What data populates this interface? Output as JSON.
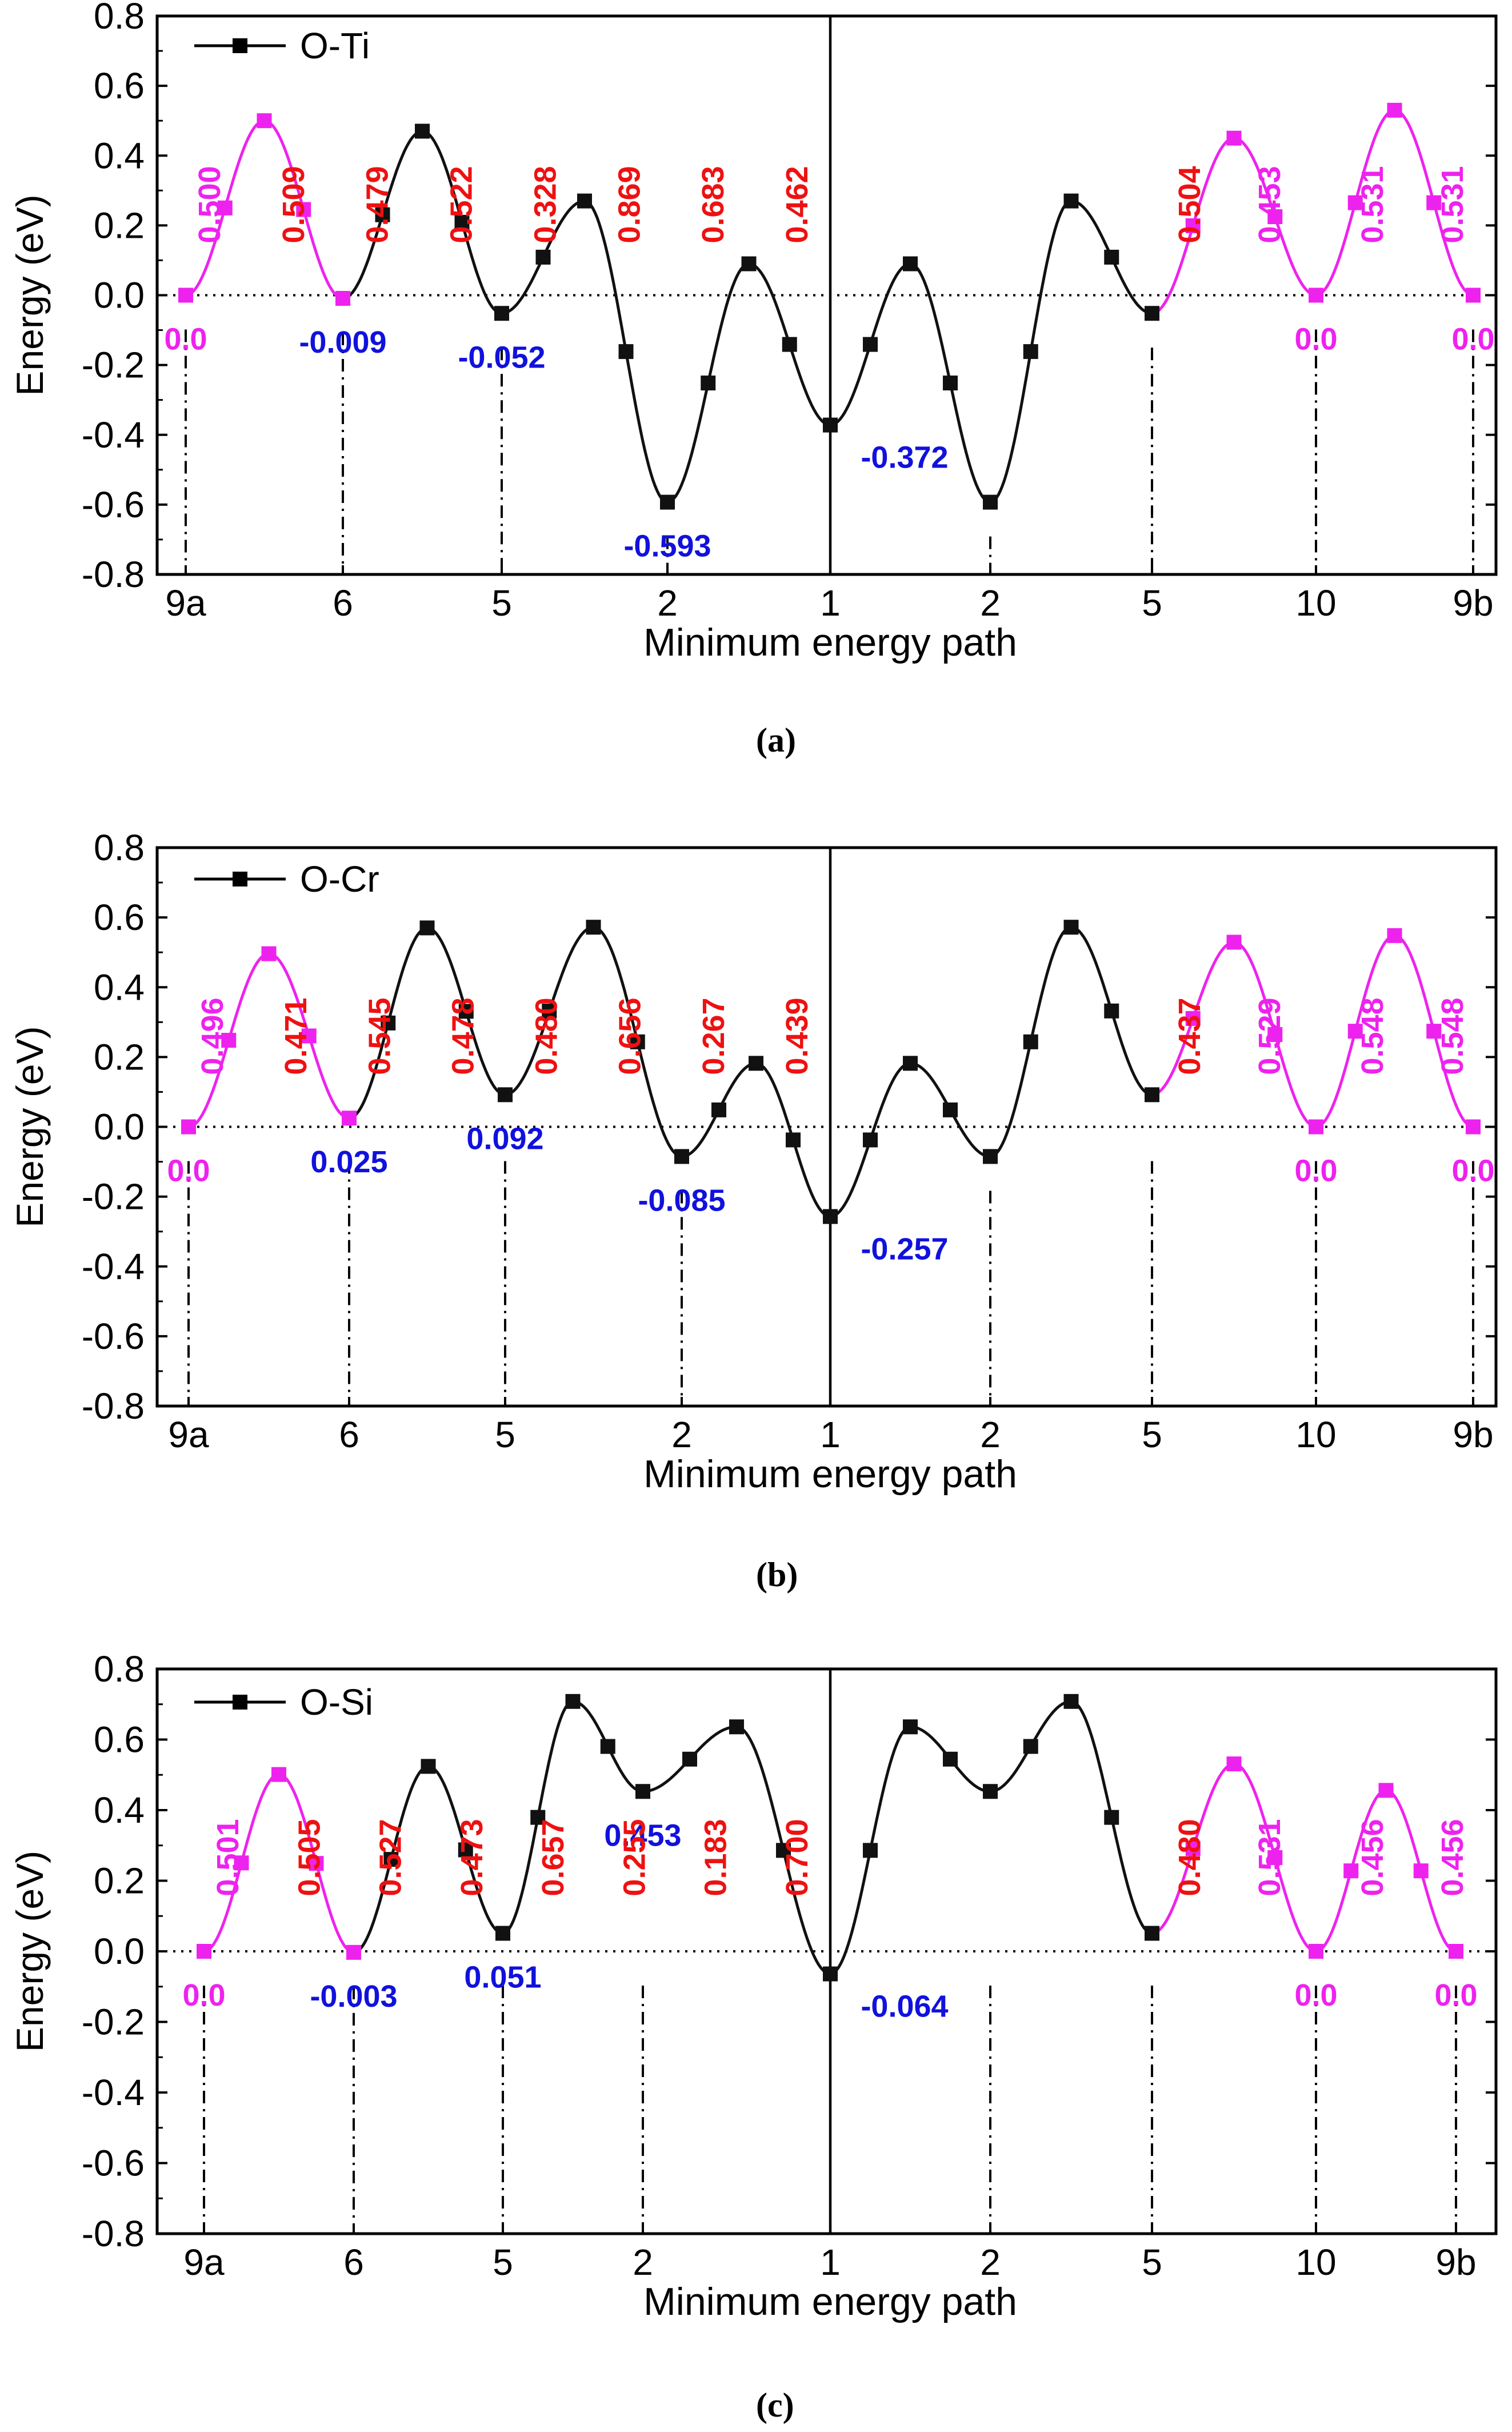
{
  "colors": {
    "black": "#111111",
    "magenta": "#ee22ee",
    "red": "#ee1111",
    "blue": "#1111dd"
  },
  "chart_data": [
    {
      "type": "line",
      "panel": "a",
      "legend": "O-Ti",
      "xlabel": "Minimum energy path",
      "ylabel": "Energy (eV)",
      "ylim": [
        -0.8,
        0.8
      ],
      "yticks": [
        "0.8",
        "0.6",
        "0.4",
        "0.2",
        "0.0",
        "-0.2",
        "-0.4",
        "-0.6",
        "-0.8"
      ],
      "xtick_labels": [
        "9a",
        "6",
        "5",
        "2",
        "1",
        "2",
        "5",
        "10",
        "9b"
      ],
      "minima": [
        0.0,
        -0.009,
        -0.052,
        -0.593,
        -0.372,
        -0.593,
        -0.052,
        0.0,
        0.0
      ],
      "saddles": [
        0.5,
        0.47,
        0.27,
        0.09,
        0.09,
        0.27,
        0.45,
        0.53
      ],
      "barrier_labels": [
        "0.500",
        "0.509",
        "0.479",
        "0.522",
        "0.328",
        "0.869",
        "0.683",
        "0.462",
        "0.504",
        "0.453",
        "0.531",
        "0.531"
      ],
      "barrier_colors": [
        "magenta",
        "red",
        "red",
        "red",
        "red",
        "red",
        "red",
        "red",
        "red",
        "magenta",
        "magenta",
        "magenta"
      ],
      "min_labels": [
        "0.0",
        "-0.009",
        "-0.052",
        "-0.593",
        "-0.372",
        "0.0",
        "0.0"
      ],
      "min_label_colors": [
        "magenta",
        "blue",
        "blue",
        "blue",
        "blue",
        "magenta",
        "magenta"
      ],
      "caption": "(a)"
    },
    {
      "type": "line",
      "panel": "b",
      "legend": "O-Cr",
      "xlabel": "Minimum energy path",
      "ylabel": "Energy (eV)",
      "ylim": [
        -0.8,
        0.8
      ],
      "yticks": [
        "0.8",
        "0.6",
        "0.4",
        "0.2",
        "0.0",
        "-0.2",
        "-0.4",
        "-0.6",
        "-0.8"
      ],
      "xtick_labels": [
        "9a",
        "6",
        "5",
        "2",
        "1",
        "2",
        "5",
        "10",
        "9b"
      ],
      "minima": [
        0.0,
        0.025,
        0.092,
        -0.085,
        -0.257,
        -0.085,
        0.092,
        0.0,
        0.0
      ],
      "saddles": [
        0.496,
        0.57,
        0.572,
        0.182,
        0.182,
        0.572,
        0.529,
        0.548
      ],
      "barrier_labels": [
        "0.496",
        "0.471",
        "0.545",
        "0.478",
        "0.480",
        "0.656",
        "0.267",
        "0.439",
        "0.437",
        "0.529",
        "0.548",
        "0.548"
      ],
      "barrier_colors": [
        "magenta",
        "red",
        "red",
        "red",
        "red",
        "red",
        "red",
        "red",
        "red",
        "magenta",
        "magenta",
        "magenta"
      ],
      "min_labels": [
        "0.0",
        "0.025",
        "0.092",
        "-0.085",
        "-0.257",
        "0.0",
        "0.0"
      ],
      "min_label_colors": [
        "magenta",
        "blue",
        "blue",
        "blue",
        "blue",
        "magenta",
        "magenta"
      ],
      "caption": "(b)"
    },
    {
      "type": "line",
      "panel": "c",
      "legend": "O-Si",
      "xlabel": "Minimum energy path",
      "ylabel": "Energy (eV)",
      "ylim": [
        -0.8,
        0.8
      ],
      "yticks": [
        "0.8",
        "0.6",
        "0.4",
        "0.2",
        "0.0",
        "-0.2",
        "-0.4",
        "-0.6",
        "-0.8"
      ],
      "xtick_labels": [
        "9a",
        "6",
        "5",
        "2",
        "1",
        "2",
        "5",
        "10",
        "9b"
      ],
      "minima": [
        0.0,
        -0.003,
        0.051,
        0.453,
        -0.064,
        0.453,
        0.051,
        0.0,
        0.0
      ],
      "saddles": [
        0.501,
        0.524,
        0.708,
        0.636,
        0.636,
        0.708,
        0.531,
        0.456
      ],
      "barrier_labels": [
        "0.501",
        "0.505",
        "0.527",
        "0.473",
        "0.657",
        "0.255",
        "0.183",
        "0.700",
        "0.480",
        "0.531",
        "0.456",
        "0.456"
      ],
      "barrier_colors": [
        "magenta",
        "red",
        "red",
        "red",
        "red",
        "red",
        "red",
        "red",
        "red",
        "magenta",
        "magenta",
        "magenta"
      ],
      "min_labels": [
        "0.0",
        "-0.003",
        "0.051",
        "0.453",
        "-0.064",
        "0.0",
        "0.0"
      ],
      "min_label_colors": [
        "magenta",
        "blue",
        "blue",
        "blue",
        "blue",
        "magenta",
        "magenta"
      ],
      "caption": "(c)"
    }
  ]
}
